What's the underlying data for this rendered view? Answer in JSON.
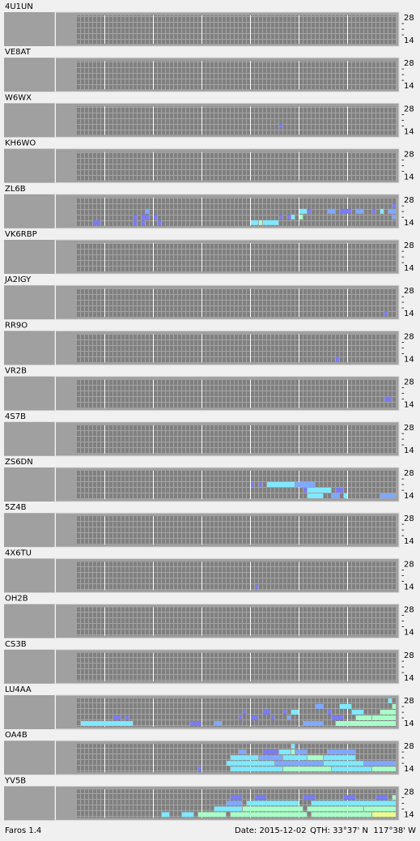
{
  "app": {
    "name": "Faros 1.4",
    "date": "Date: 2015-12-02",
    "qth": "QTH: 33°37' N  117°38' W"
  },
  "band_ticks": [
    28,
    "-",
    "-",
    "-",
    14
  ],
  "level_colors": [
    "#7b7bef",
    "#80a8ff",
    "#80e8ff",
    "#a8ffc8",
    "#e8ff90"
  ],
  "stations": [
    {
      "name": "4U1UN",
      "runs": []
    },
    {
      "name": "VE8AT",
      "runs": []
    },
    {
      "name": "W6WX",
      "runs": [
        [
          3,
          50,
          50,
          1
        ]
      ]
    },
    {
      "name": "KH6WO",
      "runs": []
    },
    {
      "name": "ZL6B",
      "runs": [
        [
          4,
          4,
          5,
          1
        ],
        [
          3,
          14,
          14,
          1
        ],
        [
          4,
          14,
          14,
          1
        ],
        [
          3,
          16,
          17,
          1
        ],
        [
          2,
          17,
          17,
          2
        ],
        [
          4,
          16,
          16,
          1
        ],
        [
          3,
          19,
          19,
          1
        ],
        [
          4,
          20,
          20,
          1
        ],
        [
          4,
          43,
          44,
          3
        ],
        [
          4,
          45,
          45,
          4
        ],
        [
          4,
          46,
          49,
          3
        ],
        [
          3,
          50,
          50,
          1
        ],
        [
          3,
          52,
          52,
          1
        ],
        [
          3,
          53,
          53,
          3
        ],
        [
          2,
          55,
          56,
          3
        ],
        [
          3,
          55,
          55,
          4
        ],
        [
          2,
          57,
          57,
          1
        ],
        [
          2,
          62,
          63,
          2
        ],
        [
          2,
          65,
          67,
          1
        ],
        [
          2,
          69,
          70,
          2
        ],
        [
          2,
          73,
          73,
          1
        ],
        [
          2,
          75,
          75,
          3
        ],
        [
          2,
          77,
          78,
          2
        ],
        [
          3,
          78,
          78,
          2
        ],
        [
          1,
          78,
          78,
          1
        ]
      ]
    },
    {
      "name": "VK6RBP",
      "runs": []
    },
    {
      "name": "JA2IGY",
      "runs": [
        [
          4,
          76,
          76,
          1
        ]
      ]
    },
    {
      "name": "RR9O",
      "runs": [
        [
          4,
          64,
          64,
          1
        ]
      ]
    },
    {
      "name": "VR2B",
      "runs": [
        [
          3,
          76,
          77,
          1
        ]
      ]
    },
    {
      "name": "4S7B",
      "runs": []
    },
    {
      "name": "ZS6DN",
      "runs": [
        [
          2,
          43,
          43,
          1
        ],
        [
          2,
          45,
          45,
          1
        ],
        [
          2,
          47,
          53,
          3
        ],
        [
          2,
          54,
          58,
          2
        ],
        [
          3,
          56,
          56,
          1
        ],
        [
          3,
          57,
          62,
          3
        ],
        [
          3,
          64,
          65,
          1
        ],
        [
          4,
          57,
          60,
          3
        ],
        [
          4,
          63,
          64,
          2
        ],
        [
          4,
          66,
          66,
          3
        ],
        [
          4,
          75,
          78,
          2
        ]
      ]
    },
    {
      "name": "5Z4B",
      "runs": []
    },
    {
      "name": "4X6TU",
      "runs": [
        [
          4,
          44,
          44,
          1
        ]
      ]
    },
    {
      "name": "OH2B",
      "runs": []
    },
    {
      "name": "CS3B",
      "runs": []
    },
    {
      "name": "LU4AA",
      "runs": [
        [
          4,
          1,
          13,
          3
        ],
        [
          3,
          9,
          10,
          1
        ],
        [
          3,
          12,
          12,
          1
        ],
        [
          4,
          28,
          30,
          1
        ],
        [
          4,
          34,
          35,
          2
        ],
        [
          3,
          40,
          40,
          1
        ],
        [
          2,
          41,
          41,
          1
        ],
        [
          3,
          43,
          44,
          1
        ],
        [
          2,
          46,
          47,
          1
        ],
        [
          3,
          48,
          48,
          1
        ],
        [
          2,
          51,
          51,
          1
        ],
        [
          3,
          52,
          52,
          2
        ],
        [
          2,
          53,
          54,
          3
        ],
        [
          1,
          59,
          60,
          2
        ],
        [
          2,
          62,
          62,
          1
        ],
        [
          3,
          63,
          65,
          1
        ],
        [
          1,
          65,
          67,
          3
        ],
        [
          2,
          68,
          70,
          3
        ],
        [
          3,
          69,
          72,
          4
        ],
        [
          3,
          73,
          78,
          4
        ],
        [
          4,
          56,
          60,
          2
        ],
        [
          4,
          64,
          78,
          4
        ],
        [
          0,
          77,
          77,
          3
        ],
        [
          1,
          78,
          78,
          4
        ],
        [
          2,
          75,
          78,
          4
        ]
      ]
    },
    {
      "name": "OA4B",
      "runs": [
        [
          0,
          53,
          53,
          3
        ],
        [
          1,
          40,
          41,
          2
        ],
        [
          1,
          46,
          49,
          1
        ],
        [
          1,
          50,
          52,
          3
        ],
        [
          1,
          53,
          53,
          4
        ],
        [
          1,
          54,
          56,
          2
        ],
        [
          1,
          62,
          68,
          2
        ],
        [
          2,
          38,
          44,
          3
        ],
        [
          2,
          45,
          50,
          2
        ],
        [
          2,
          51,
          56,
          3
        ],
        [
          2,
          57,
          60,
          4
        ],
        [
          2,
          61,
          68,
          3
        ],
        [
          3,
          37,
          48,
          3
        ],
        [
          3,
          49,
          60,
          2
        ],
        [
          3,
          61,
          70,
          3
        ],
        [
          3,
          71,
          78,
          2
        ],
        [
          4,
          30,
          30,
          1
        ],
        [
          4,
          38,
          50,
          3
        ],
        [
          4,
          51,
          62,
          4
        ],
        [
          4,
          63,
          72,
          3
        ],
        [
          4,
          73,
          78,
          4
        ]
      ]
    },
    {
      "name": "YV5B",
      "runs": [
        [
          1,
          38,
          40,
          1
        ],
        [
          1,
          44,
          46,
          1
        ],
        [
          1,
          56,
          58,
          1
        ],
        [
          1,
          66,
          68,
          1
        ],
        [
          1,
          74,
          76,
          1
        ],
        [
          1,
          78,
          78,
          4
        ],
        [
          2,
          37,
          40,
          2
        ],
        [
          2,
          42,
          54,
          3
        ],
        [
          2,
          58,
          78,
          3
        ],
        [
          3,
          34,
          40,
          3
        ],
        [
          3,
          41,
          55,
          4
        ],
        [
          3,
          57,
          70,
          4
        ],
        [
          3,
          71,
          78,
          4
        ],
        [
          4,
          21,
          22,
          3
        ],
        [
          4,
          26,
          28,
          3
        ],
        [
          4,
          30,
          36,
          4
        ],
        [
          4,
          38,
          56,
          4
        ],
        [
          4,
          58,
          72,
          4
        ],
        [
          4,
          73,
          78,
          5
        ]
      ]
    }
  ]
}
